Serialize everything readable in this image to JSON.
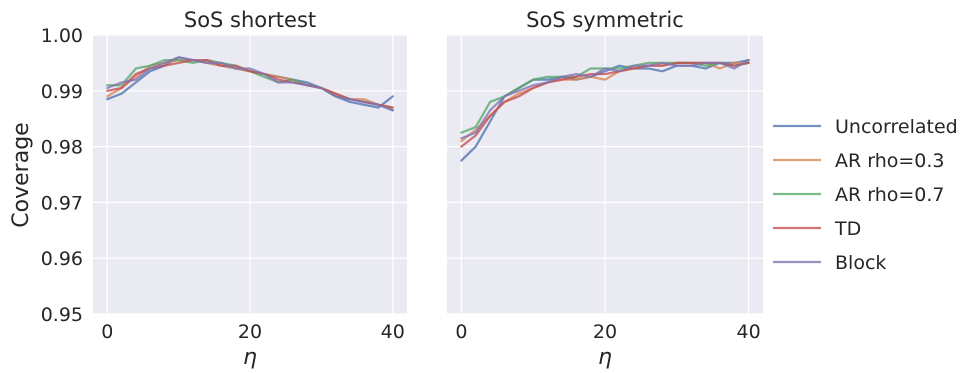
{
  "chart_data": {
    "type": "line",
    "ylabel": "Coverage",
    "ylim": [
      0.95,
      1.0
    ],
    "yticks": [
      "0.95",
      "0.96",
      "0.97",
      "0.98",
      "0.99",
      "1.00"
    ],
    "xlim": [
      -2,
      42
    ],
    "xticks": [
      "0",
      "20",
      "40"
    ],
    "grid": true,
    "legend": "right",
    "x": [
      0,
      2,
      4,
      6,
      8,
      10,
      12,
      14,
      16,
      18,
      20,
      22,
      24,
      26,
      28,
      30,
      32,
      34,
      36,
      38,
      40
    ],
    "series_styles": [
      {
        "name": "Uncorrelated",
        "color": "#4c72b0"
      },
      {
        "name": "AR rho=0.3",
        "color": "#dd8452"
      },
      {
        "name": "AR rho=0.7",
        "color": "#55a868"
      },
      {
        "name": "TD",
        "color": "#c44e52"
      },
      {
        "name": "Block",
        "color": "#8172b3"
      }
    ],
    "panels": [
      {
        "title": "SoS shortest",
        "xlabel": "η",
        "series": [
          {
            "name": "Uncorrelated",
            "values": [
              0.9885,
              0.9895,
              0.9915,
              0.9935,
              0.9945,
              0.996,
              0.9955,
              0.995,
              0.9945,
              0.994,
              0.9935,
              0.993,
              0.9925,
              0.992,
              0.9915,
              0.9905,
              0.989,
              0.988,
              0.9875,
              0.987,
              0.989
            ]
          },
          {
            "name": "AR rho=0.3",
            "values": [
              0.989,
              0.9905,
              0.9925,
              0.9945,
              0.995,
              0.9955,
              0.9955,
              0.995,
              0.9945,
              0.994,
              0.9935,
              0.993,
              0.9925,
              0.992,
              0.991,
              0.9905,
              0.9895,
              0.9885,
              0.9885,
              0.9875,
              0.987
            ]
          },
          {
            "name": "AR rho=0.7",
            "values": [
              0.991,
              0.991,
              0.994,
              0.9945,
              0.9955,
              0.9955,
              0.995,
              0.9955,
              0.995,
              0.9945,
              0.9935,
              0.9925,
              0.9915,
              0.992,
              0.991,
              0.9905,
              0.989,
              0.9885,
              0.988,
              0.9875,
              0.9865
            ]
          },
          {
            "name": "TD",
            "values": [
              0.99,
              0.9905,
              0.993,
              0.994,
              0.9945,
              0.995,
              0.9955,
              0.9955,
              0.9945,
              0.9945,
              0.9935,
              0.993,
              0.992,
              0.9915,
              0.991,
              0.9905,
              0.9895,
              0.9885,
              0.988,
              0.9875,
              0.987
            ]
          },
          {
            "name": "Block",
            "values": [
              0.9905,
              0.9915,
              0.992,
              0.994,
              0.995,
              0.996,
              0.9955,
              0.995,
              0.995,
              0.994,
              0.994,
              0.993,
              0.9915,
              0.9915,
              0.991,
              0.9905,
              0.989,
              0.9885,
              0.988,
              0.9875,
              0.9865
            ]
          }
        ]
      },
      {
        "title": "SoS symmetric",
        "xlabel": "η",
        "series": [
          {
            "name": "Uncorrelated",
            "values": [
              0.9775,
              0.98,
              0.9845,
              0.989,
              0.9905,
              0.992,
              0.992,
              0.9925,
              0.992,
              0.9925,
              0.9935,
              0.9945,
              0.994,
              0.994,
              0.9935,
              0.9945,
              0.9945,
              0.994,
              0.995,
              0.995,
              0.9955
            ]
          },
          {
            "name": "AR rho=0.3",
            "values": [
              0.981,
              0.983,
              0.9855,
              0.988,
              0.9895,
              0.9905,
              0.9915,
              0.992,
              0.992,
              0.9925,
              0.992,
              0.9935,
              0.994,
              0.9945,
              0.9945,
              0.995,
              0.995,
              0.995,
              0.994,
              0.995,
              0.995
            ]
          },
          {
            "name": "AR rho=0.7",
            "values": [
              0.9825,
              0.9835,
              0.988,
              0.989,
              0.9905,
              0.992,
              0.9925,
              0.9925,
              0.9925,
              0.994,
              0.994,
              0.994,
              0.9945,
              0.995,
              0.995,
              0.995,
              0.995,
              0.9945,
              0.995,
              0.9945,
              0.995
            ]
          },
          {
            "name": "TD",
            "values": [
              0.98,
              0.982,
              0.9855,
              0.988,
              0.989,
              0.9905,
              0.9915,
              0.992,
              0.9925,
              0.993,
              0.993,
              0.9935,
              0.994,
              0.9945,
              0.9945,
              0.995,
              0.995,
              0.995,
              0.995,
              0.9945,
              0.995
            ]
          },
          {
            "name": "Block",
            "values": [
              0.9815,
              0.9825,
              0.9865,
              0.989,
              0.99,
              0.991,
              0.9915,
              0.9925,
              0.993,
              0.9925,
              0.994,
              0.9935,
              0.9945,
              0.9945,
              0.995,
              0.9945,
              0.9945,
              0.995,
              0.995,
              0.994,
              0.9955
            ]
          }
        ]
      }
    ]
  }
}
